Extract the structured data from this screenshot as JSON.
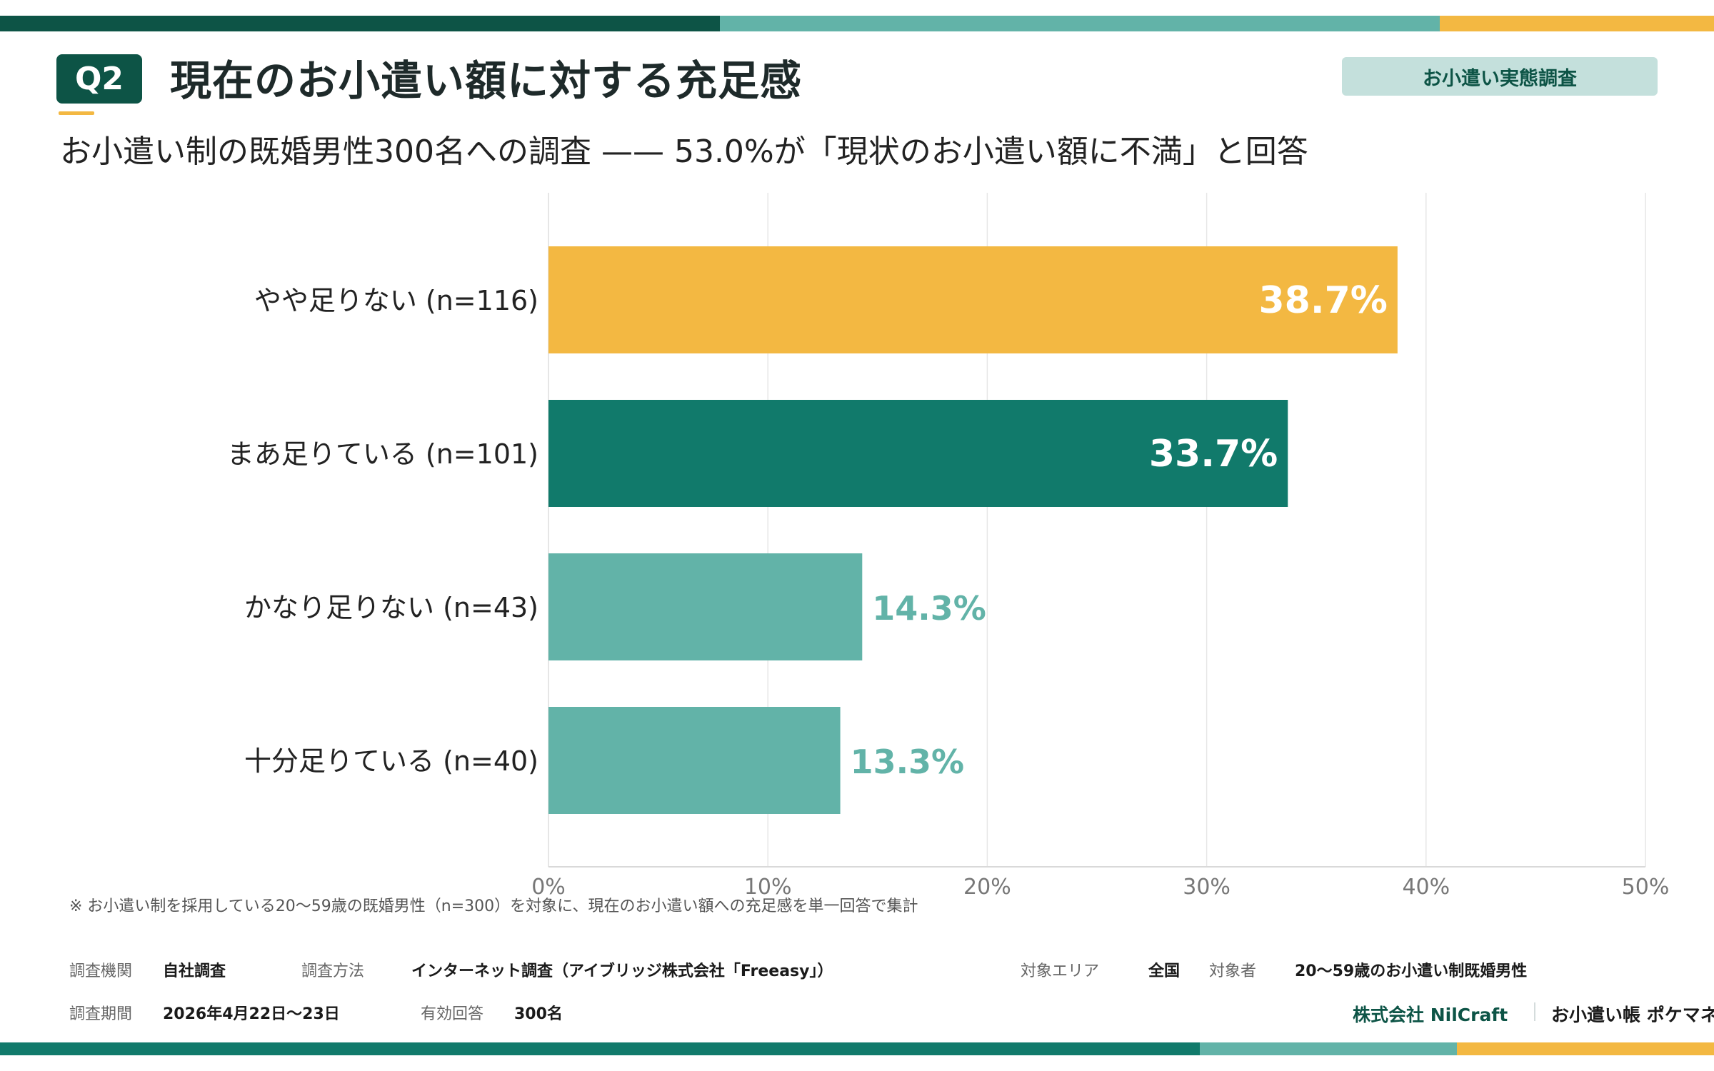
{
  "colors": {
    "dark_green": "#0d5446",
    "teal": "#117a6b",
    "light_teal": "#62b3a8",
    "yellow": "#f3b842",
    "tag_bg": "#c4e0dc",
    "grid": "#e6e6e6"
  },
  "header": {
    "badge": "Q2",
    "title": "現在のお小遣い額に対する充足感",
    "tag": "お小遣い実態調査",
    "subtitle": "お小遣い制の既婚男性300名への調査 —— 53.0%が「現状のお小遣い額に不満」と回答"
  },
  "chart_data": {
    "type": "bar",
    "orientation": "horizontal",
    "categories": [
      "やや足りない (n=116)",
      "まあ足りている (n=101)",
      "かなり足りない (n=43)",
      "十分足りている (n=40)"
    ],
    "values": [
      38.7,
      33.7,
      14.3,
      13.3
    ],
    "value_labels": [
      "38.7%",
      "33.7%",
      "14.3%",
      "13.3%"
    ],
    "bar_colors": [
      "#f3b842",
      "#117a6b",
      "#62b3a8",
      "#62b3a8"
    ],
    "label_inside": [
      true,
      true,
      false,
      false
    ],
    "xlim": [
      0,
      50
    ],
    "xticks": [
      0,
      10,
      20,
      30,
      40,
      50
    ],
    "xtick_labels": [
      "0%",
      "10%",
      "20%",
      "30%",
      "40%",
      "50%"
    ],
    "grid": true
  },
  "footnote": "※ お小遣い制を採用している20〜59歳の既婚男性（n=300）を対象に、現在のお小遣い額への充足感を単一回答で集計",
  "survey_meta": {
    "org_label": "調査機関",
    "org_value": "自社調査",
    "method_label": "調査方法",
    "method_value": "インターネット調査（アイブリッジ株式会社「Freeasy」）",
    "area_label": "対象エリア",
    "area_value": "全国",
    "target_label": "対象者",
    "target_value": "20〜59歳のお小遣い制既婚男性",
    "period_label": "調査期間",
    "period_value": "2026年4月22日〜23日",
    "valid_label": "有効回答",
    "valid_value": "300名"
  },
  "footer": {
    "company": "株式会社 NilCraft",
    "app": "お小遣い帳 ポケマネ"
  }
}
